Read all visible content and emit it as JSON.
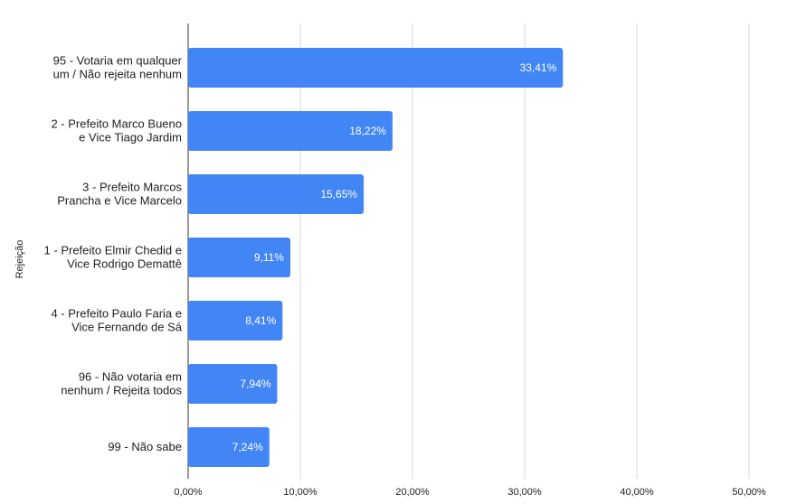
{
  "chart_data": {
    "type": "bar",
    "orientation": "horizontal",
    "title": "",
    "xlabel": "",
    "ylabel": "Rejeição",
    "categories": [
      [
        "95 - Votaria em qualquer",
        "um / Não rejeita nenhum"
      ],
      [
        "2 - Prefeito Marco Bueno",
        "e Vice Tiago Jardim"
      ],
      [
        "3 - Prefeito Marcos",
        "Prancha e Vice Marcelo"
      ],
      [
        "1 - Prefeito Elmir Chedid e",
        "Vice Rodrigo Demattê"
      ],
      [
        "4 - Prefeito Paulo Faria e",
        "Vice Fernando de Sá"
      ],
      [
        "96 - Não votaria em",
        "nenhum / Rejeita todos"
      ],
      [
        "99 - Não sabe"
      ]
    ],
    "values": [
      33.41,
      18.22,
      15.65,
      9.11,
      8.41,
      7.94,
      7.24
    ],
    "data_labels": [
      "33,41%",
      "18,22%",
      "15,65%",
      "9,11%",
      "8,41%",
      "7,94%",
      "7,24%"
    ],
    "xlim": [
      0,
      50
    ],
    "x_ticks": [
      0,
      10,
      20,
      30,
      40,
      50
    ],
    "x_tick_labels": [
      "0,00%",
      "10,00%",
      "20,00%",
      "30,00%",
      "40,00%",
      "50,00%"
    ],
    "grid": true,
    "legend": "none",
    "colors": {
      "bar": "#4285F4",
      "grid": "#d9d9d9",
      "axis": "#333333"
    }
  }
}
